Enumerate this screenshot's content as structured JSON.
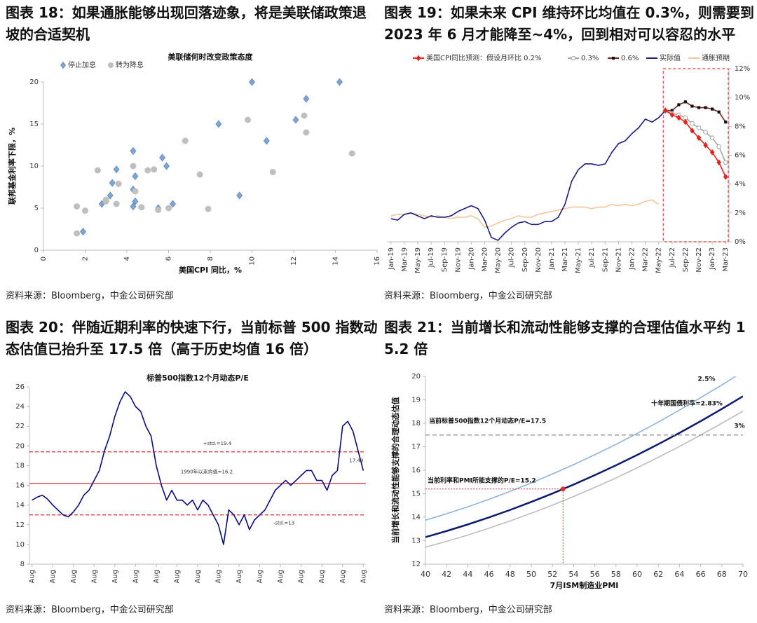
{
  "chart_data": [
    {
      "type": "scatter",
      "heading": "图表 18：如果通胀能够出现回落迹象，将是美联储政策退坡的合适契机",
      "title": "美联储何时改变政策态度",
      "xlabel": "美国CPI 同比，%",
      "ylabel": "联邦基金利率下限，%",
      "xlim": [
        0,
        16
      ],
      "xticks": [
        0,
        2,
        4,
        6,
        8,
        10,
        12,
        14,
        16
      ],
      "ylim": [
        0,
        20
      ],
      "yticks": [
        0,
        5,
        10,
        15,
        20
      ],
      "legend": "top-left",
      "series": [
        {
          "name": "停止加息",
          "color": "#7da5d6",
          "marker": "diamond",
          "x": [
            1.9,
            2.8,
            3.2,
            3.3,
            3.5,
            4.3,
            4.3,
            4.4,
            4.4,
            4.3,
            5.5,
            5.7,
            5.9,
            6.2,
            8.4,
            9.4,
            10,
            10.7,
            12.1,
            12.6,
            14.2
          ],
          "values": [
            2.2,
            5.5,
            6.5,
            8,
            9.6,
            11.8,
            5.2,
            5.8,
            8.8,
            7.2,
            5,
            11,
            10,
            5.5,
            15,
            6.5,
            20,
            13,
            15.5,
            18,
            20
          ]
        },
        {
          "name": "转为降息",
          "color": "#bfbfbf",
          "marker": "circle",
          "x": [
            1.6,
            1.6,
            2,
            2.6,
            3,
            3,
            3.5,
            3.6,
            4.3,
            4.4,
            4.7,
            5,
            5.3,
            5.5,
            6,
            6.8,
            7.5,
            7.9,
            9.8,
            11,
            12.5,
            12.6,
            14.8
          ],
          "values": [
            5.2,
            2,
            4.7,
            9.5,
            5.8,
            6,
            5.5,
            7.9,
            10,
            7,
            5.1,
            9.5,
            9.6,
            4.8,
            5,
            13,
            9,
            4.9,
            15.5,
            9.3,
            16,
            14,
            11.5
          ]
        }
      ],
      "source": "资料来源：Bloomberg，中金公司研究部"
    },
    {
      "type": "line",
      "heading": "图表 19：如果未来 CPI 维持环比均值在 0.3%，则需要到 2023 年 6 月才能降至~4%，回到相对可以容忍的水平",
      "categories": [
        "Jan-19",
        null,
        "Mar-19",
        null,
        "May-19",
        null,
        "Jul-19",
        null,
        "Sep-19",
        null,
        "Nov-19",
        null,
        "Jan-20",
        null,
        "Mar-20",
        null,
        "May-20",
        null,
        "Jul-20",
        null,
        "Sep-20",
        null,
        "Nov-20",
        null,
        "Jan-21",
        null,
        "Mar-21",
        null,
        "May-21",
        null,
        "Jul-21",
        null,
        "Sep-21",
        null,
        "Nov-21",
        null,
        "Jan-22",
        null,
        "Mar-22",
        null,
        "May-22",
        null,
        "Jul-22",
        null,
        "Sep-22",
        null,
        "Nov-22",
        null,
        "Jan-23",
        null,
        "Mar-23"
      ],
      "ylim": [
        0,
        12
      ],
      "yticks": [
        {
          "value": 0,
          "label": "0%"
        },
        {
          "value": 2,
          "label": "2%"
        },
        {
          "value": 4,
          "label": "4%"
        },
        {
          "value": 6,
          "label": "6%"
        },
        {
          "value": 8,
          "label": "8%"
        },
        {
          "value": 10,
          "label": "10%"
        },
        {
          "value": 12,
          "label": "12%"
        }
      ],
      "yaxis_position": "right",
      "legend": "top",
      "series": [
        {
          "name": "美国CPI同比预测：假设月环比 0.2%",
          "color": "#e8211d",
          "marker": "diamond",
          "marker_color": "#e8211d",
          "values": [
            null,
            null,
            null,
            null,
            null,
            null,
            null,
            null,
            null,
            null,
            null,
            null,
            null,
            null,
            null,
            null,
            null,
            null,
            null,
            null,
            null,
            null,
            null,
            null,
            null,
            null,
            null,
            null,
            null,
            null,
            null,
            null,
            null,
            null,
            null,
            null,
            null,
            null,
            null,
            null,
            null,
            9.1,
            8.8,
            8.6,
            8.3,
            7.7,
            7.2,
            6.7,
            6.2,
            5.5,
            4.5
          ]
        },
        {
          "name": "0.3%",
          "color": "#a6a6a6",
          "marker": "circle",
          "marker_color": "#a6a6a6",
          "values": [
            null,
            null,
            null,
            null,
            null,
            null,
            null,
            null,
            null,
            null,
            null,
            null,
            null,
            null,
            null,
            null,
            null,
            null,
            null,
            null,
            null,
            null,
            null,
            null,
            null,
            null,
            null,
            null,
            null,
            null,
            null,
            null,
            null,
            null,
            null,
            null,
            null,
            null,
            null,
            null,
            null,
            9.1,
            8.9,
            8.8,
            8.6,
            8.2,
            7.9,
            7.6,
            7.2,
            6.6,
            5.5
          ]
        },
        {
          "name": "0.6%",
          "color": "#7f1f1f",
          "marker": "square",
          "marker_color": "#111111",
          "values": [
            null,
            null,
            null,
            null,
            null,
            null,
            null,
            null,
            null,
            null,
            null,
            null,
            null,
            null,
            null,
            null,
            null,
            null,
            null,
            null,
            null,
            null,
            null,
            null,
            null,
            null,
            null,
            null,
            null,
            null,
            null,
            null,
            null,
            null,
            null,
            null,
            null,
            null,
            null,
            null,
            null,
            9.1,
            9.1,
            9.5,
            9.7,
            9.4,
            9.3,
            9.3,
            9.2,
            9.0,
            8.3
          ]
        },
        {
          "name": "实际值",
          "color": "#1b1b7e",
          "values": [
            1.6,
            1.5,
            1.9,
            2.0,
            1.8,
            1.6,
            1.8,
            1.7,
            1.7,
            1.8,
            2.1,
            2.3,
            2.5,
            2.3,
            1.5,
            0.3,
            0.1,
            0.6,
            1.0,
            1.3,
            1.4,
            1.2,
            1.2,
            1.4,
            1.4,
            1.7,
            2.6,
            4.2,
            5.0,
            5.4,
            5.4,
            5.3,
            5.4,
            6.2,
            6.8,
            7.0,
            7.5,
            7.9,
            8.5,
            8.3,
            8.6,
            9.1,
            null,
            null,
            null,
            null,
            null,
            null,
            null,
            null,
            null
          ]
        },
        {
          "name": "通胀预期",
          "color": "#f5c59c",
          "values": [
            1.8,
            1.9,
            1.9,
            2.0,
            1.9,
            1.8,
            1.7,
            1.8,
            1.7,
            1.6,
            1.7,
            1.7,
            1.8,
            1.6,
            1.0,
            1.1,
            1.3,
            1.5,
            1.6,
            1.8,
            1.7,
            1.7,
            1.9,
            2.0,
            2.1,
            2.2,
            2.3,
            2.4,
            2.4,
            2.4,
            2.3,
            2.4,
            2.4,
            2.6,
            2.5,
            2.6,
            2.5,
            2.6,
            2.8,
            2.9,
            2.6,
            null,
            null,
            null,
            null,
            null,
            null,
            null,
            null,
            null,
            null
          ]
        }
      ],
      "source": "资料来源：Bloomberg，中金公司研究部"
    },
    {
      "type": "line",
      "heading": "图表 20：伴随近期利率的快速下行，当前标普 500 指数动态估值已抬升至 17.5 倍（高于历史均值 16 倍）",
      "title": "标普500指数12个月动态P/E",
      "categories": [
        "Aug",
        null,
        null,
        null,
        "Aug",
        null,
        null,
        null,
        "Aug",
        null,
        null,
        null,
        "Aug",
        null,
        null,
        null,
        "Aug",
        null,
        null,
        null,
        "Aug",
        null,
        null,
        null,
        "Aug",
        null,
        null,
        null,
        "Aug",
        null,
        null,
        null,
        "Aug",
        null,
        null,
        null,
        "Aug",
        null,
        null,
        null,
        "Aug",
        null,
        null,
        null,
        "Aug",
        null,
        null,
        null,
        "Aug",
        null,
        null,
        null,
        "Aug",
        null,
        null,
        null,
        "Aug",
        null,
        null,
        null,
        "Aug",
        null,
        null,
        null,
        "Aug"
      ],
      "values": [
        14.5,
        14.8,
        15.0,
        14.6,
        14.0,
        13.5,
        13.0,
        12.8,
        13.3,
        14.0,
        15.0,
        15.5,
        16.5,
        17.5,
        19.5,
        21.0,
        23.0,
        24.5,
        25.5,
        25.0,
        24.0,
        23.5,
        22.0,
        21.0,
        18.0,
        16.0,
        14.5,
        15.5,
        14.5,
        14.5,
        14.0,
        14.5,
        13.5,
        14.5,
        14.0,
        13.0,
        12.0,
        10.0,
        13.5,
        13.0,
        12.0,
        13.0,
        11.5,
        12.5,
        13.0,
        13.5,
        14.5,
        15.5,
        16.0,
        16.5,
        16.0,
        16.5,
        17.0,
        17.5,
        17.5,
        16.5,
        16.5,
        15.5,
        17.0,
        17.5,
        22.0,
        22.5,
        21.5,
        19.5,
        17.49
      ],
      "color": "#0a0a80",
      "end_label": true,
      "ylim": [
        8,
        26
      ],
      "yticks": [
        8,
        10,
        12,
        14,
        16,
        18,
        20,
        22,
        24,
        26
      ],
      "hlines": [
        {
          "value": 19.4,
          "label": "+std.=19.4",
          "style": "dashed",
          "color": "#e03030"
        },
        {
          "value": 16.2,
          "label": "1990年以来均值=16.2",
          "style": "solid",
          "color": "#e03030"
        },
        {
          "value": 13,
          "label": "-std.=13",
          "style": "dashed",
          "color": "#e03030"
        }
      ],
      "source": "资料来源：Bloomberg，中金公司研究部"
    },
    {
      "type": "line",
      "heading": "图表 21：当前增长和流动性能够支撑的合理估值水平约 15.2 倍",
      "xlabel": "7月ISM制造业PMI",
      "ylabel": "当前增长和流动性能够支撑的合理动态估值",
      "x": [
        40,
        42,
        44,
        46,
        48,
        50,
        52,
        54,
        56,
        58,
        60,
        62,
        64,
        66,
        68,
        70
      ],
      "xlim": [
        40,
        70
      ],
      "xticks": [
        40,
        42,
        44,
        46,
        48,
        50,
        52,
        54,
        56,
        58,
        60,
        62,
        64,
        66,
        68,
        70
      ],
      "ylim": [
        12,
        20
      ],
      "yticks": [
        12,
        13,
        14,
        15,
        16,
        17,
        18,
        19,
        20
      ],
      "series": [
        {
          "name": "2.5%",
          "color": "#8fb4d9",
          "values": [
            13.87,
            14.15,
            14.44,
            14.76,
            15.1,
            15.46,
            15.84,
            16.24,
            16.66,
            17.1,
            17.57,
            18.05,
            18.56,
            19.09,
            19.63,
            20.2
          ]
        },
        {
          "name": "十年期国债利率=2.83%",
          "color": "#0d1a6e",
          "width": 2.5,
          "values": [
            13.15,
            13.41,
            13.69,
            13.99,
            14.31,
            14.65,
            15.01,
            15.39,
            15.79,
            16.21,
            16.65,
            17.11,
            17.59,
            18.09,
            18.61,
            19.15
          ]
        },
        {
          "name": "3%",
          "color": "#bdbdbd",
          "values": [
            12.72,
            12.97,
            13.24,
            13.53,
            13.84,
            14.17,
            14.51,
            14.88,
            15.27,
            15.67,
            16.1,
            16.55,
            17.01,
            17.5,
            18.0,
            18.52
          ]
        }
      ],
      "annotations": [
        {
          "text": "当前标普500指数12个月动态P/E=17.5",
          "y": 17.5
        },
        {
          "text": "当前利率和PMI所能支撑的P/E=15.2",
          "x": 53,
          "y": 15.2
        }
      ],
      "source": "资料来源：Bloomberg，中金公司研究部"
    }
  ]
}
